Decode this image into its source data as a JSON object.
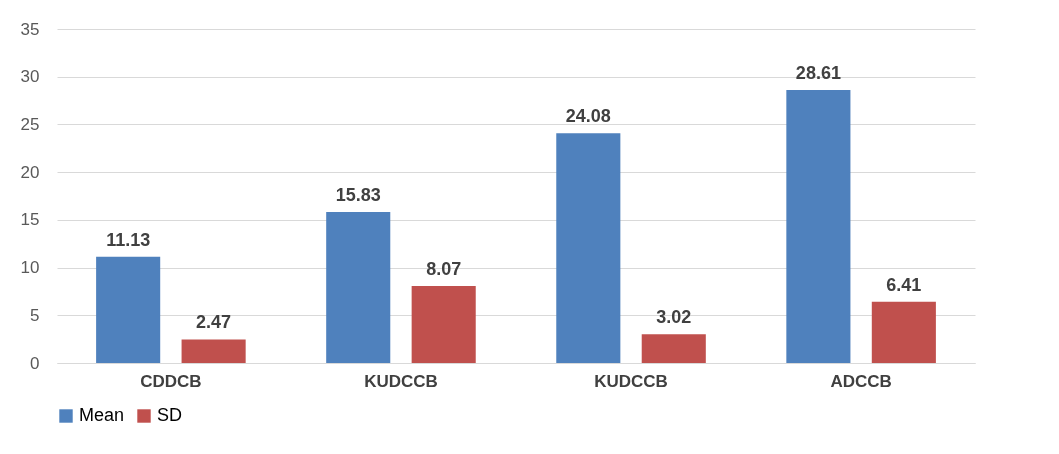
{
  "chart_data": {
    "type": "bar",
    "categories": [
      "CDDCB",
      "KUDCCB",
      "KUDCCB",
      "ADCCB"
    ],
    "series": [
      {
        "name": "Mean",
        "color": "#4f81bd",
        "values": [
          11.13,
          15.83,
          24.08,
          28.61
        ]
      },
      {
        "name": "SD",
        "color": "#c0504d",
        "values": [
          2.47,
          8.07,
          3.02,
          6.41
        ]
      }
    ],
    "ylim": [
      0,
      35
    ],
    "yticks": [
      0,
      5,
      10,
      15,
      20,
      25,
      30,
      35
    ],
    "grid": "y",
    "legend": "bottom",
    "data_labels": true
  }
}
